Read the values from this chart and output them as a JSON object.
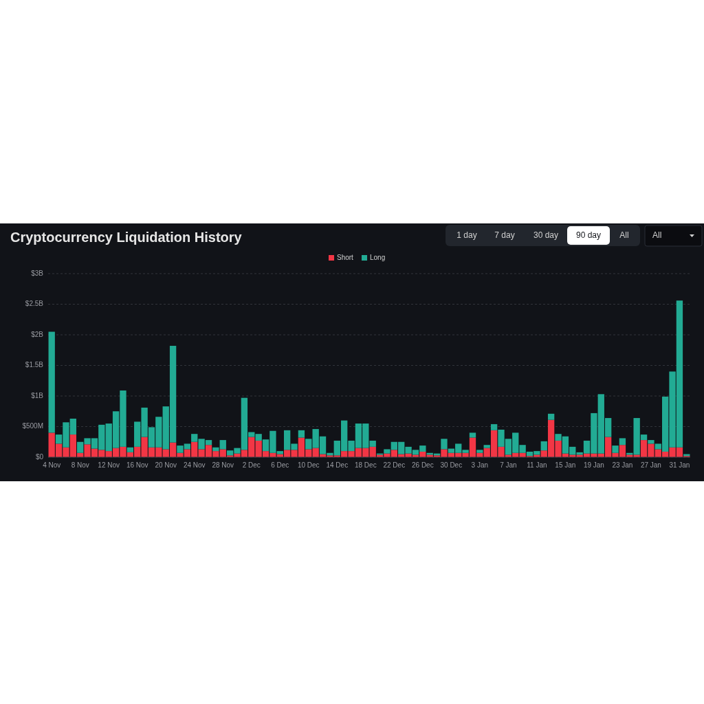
{
  "chart_data": {
    "type": "bar",
    "title": "Cryptocurrency Liquidation History",
    "stacked": true,
    "grid": "y",
    "legend": "top",
    "categories": [
      "4 Nov",
      null,
      null,
      null,
      "8 Nov",
      null,
      null,
      null,
      "12 Nov",
      null,
      null,
      null,
      "16 Nov",
      null,
      null,
      null,
      "20 Nov",
      null,
      null,
      null,
      "24 Nov",
      null,
      null,
      null,
      "28 Nov",
      null,
      null,
      null,
      "2 Dec",
      null,
      null,
      null,
      "6 Dec",
      null,
      null,
      null,
      "10 Dec",
      null,
      null,
      null,
      "14 Dec",
      null,
      null,
      null,
      "18 Dec",
      null,
      null,
      null,
      "22 Dec",
      null,
      null,
      null,
      "26 Dec",
      null,
      null,
      null,
      "30 Dec",
      null,
      null,
      null,
      "3 Jan",
      null,
      null,
      null,
      "7 Jan",
      null,
      null,
      null,
      "11 Jan",
      null,
      null,
      null,
      "15 Jan",
      null,
      null,
      null,
      "19 Jan",
      null,
      null,
      null,
      "23 Jan",
      null,
      null,
      null,
      "27 Jan",
      null,
      null,
      null,
      "31 Jan",
      null
    ],
    "ylim": [
      0,
      3000000000
    ],
    "yticks": [
      {
        "value": 0,
        "label": "$0"
      },
      {
        "value": 500000000,
        "label": "$500M"
      },
      {
        "value": 1000000000,
        "label": "$1B"
      },
      {
        "value": 1500000000,
        "label": "$1.5B"
      },
      {
        "value": 2000000000,
        "label": "$2B"
      },
      {
        "value": 2500000000,
        "label": "$2.5B"
      },
      {
        "value": 3000000000,
        "label": "$3B"
      }
    ],
    "series": [
      {
        "name": "Short",
        "color": "#f23645",
        "values": [
          400000000,
          220000000,
          160000000,
          370000000,
          70000000,
          210000000,
          140000000,
          120000000,
          100000000,
          150000000,
          170000000,
          80000000,
          170000000,
          330000000,
          160000000,
          160000000,
          130000000,
          240000000,
          70000000,
          130000000,
          250000000,
          130000000,
          200000000,
          100000000,
          130000000,
          30000000,
          60000000,
          120000000,
          330000000,
          270000000,
          100000000,
          70000000,
          50000000,
          120000000,
          120000000,
          320000000,
          130000000,
          150000000,
          50000000,
          30000000,
          30000000,
          100000000,
          100000000,
          150000000,
          150000000,
          170000000,
          40000000,
          60000000,
          120000000,
          50000000,
          60000000,
          40000000,
          90000000,
          40000000,
          30000000,
          130000000,
          70000000,
          70000000,
          70000000,
          320000000,
          70000000,
          150000000,
          440000000,
          170000000,
          40000000,
          70000000,
          70000000,
          20000000,
          40000000,
          110000000,
          610000000,
          270000000,
          60000000,
          40000000,
          40000000,
          60000000,
          60000000,
          60000000,
          330000000,
          70000000,
          200000000,
          40000000,
          40000000,
          280000000,
          220000000,
          130000000,
          90000000,
          160000000,
          160000000,
          20000000
        ]
      },
      {
        "name": "Long",
        "color": "#22ab94",
        "values": [
          1650000000,
          150000000,
          410000000,
          260000000,
          180000000,
          100000000,
          170000000,
          410000000,
          450000000,
          600000000,
          920000000,
          80000000,
          410000000,
          480000000,
          330000000,
          500000000,
          700000000,
          1580000000,
          120000000,
          90000000,
          130000000,
          170000000,
          80000000,
          60000000,
          150000000,
          80000000,
          90000000,
          850000000,
          80000000,
          110000000,
          190000000,
          360000000,
          50000000,
          320000000,
          100000000,
          120000000,
          170000000,
          310000000,
          290000000,
          40000000,
          240000000,
          500000000,
          170000000,
          400000000,
          400000000,
          100000000,
          20000000,
          70000000,
          130000000,
          200000000,
          110000000,
          80000000,
          100000000,
          30000000,
          30000000,
          170000000,
          70000000,
          150000000,
          50000000,
          80000000,
          50000000,
          50000000,
          100000000,
          280000000,
          260000000,
          330000000,
          130000000,
          70000000,
          60000000,
          150000000,
          100000000,
          110000000,
          280000000,
          130000000,
          40000000,
          210000000,
          660000000,
          970000000,
          310000000,
          120000000,
          110000000,
          30000000,
          600000000,
          90000000,
          60000000,
          90000000,
          900000000,
          1240000000,
          2400000000,
          30000000
        ]
      }
    ],
    "annotations": [
      "1 day",
      "7 day",
      "30 day",
      "90 day",
      "All",
      "All"
    ]
  }
}
